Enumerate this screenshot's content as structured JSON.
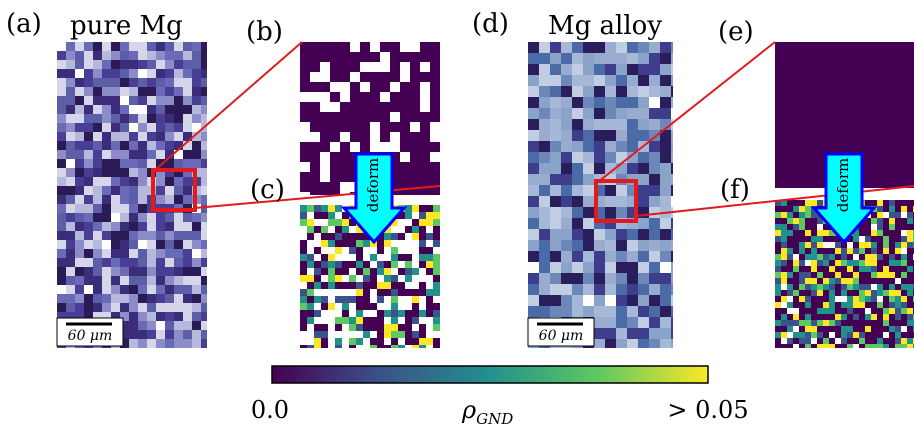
{
  "panels": {
    "a": {
      "label": "(a)",
      "title": "pure Mg",
      "scale_bar": "60 μm"
    },
    "b": {
      "label": "(b)"
    },
    "c": {
      "label": "(c)"
    },
    "d": {
      "label": "(d)",
      "title": "Mg alloy",
      "scale_bar": "60 μm"
    },
    "e": {
      "label": "(e)"
    },
    "f": {
      "label": "(f)"
    }
  },
  "arrows": [
    "deform",
    "deform"
  ],
  "colorbar": {
    "min_label": "0.0",
    "symbol": "ρ",
    "subscript": "GND",
    "max_label": "> 0.05"
  }
}
